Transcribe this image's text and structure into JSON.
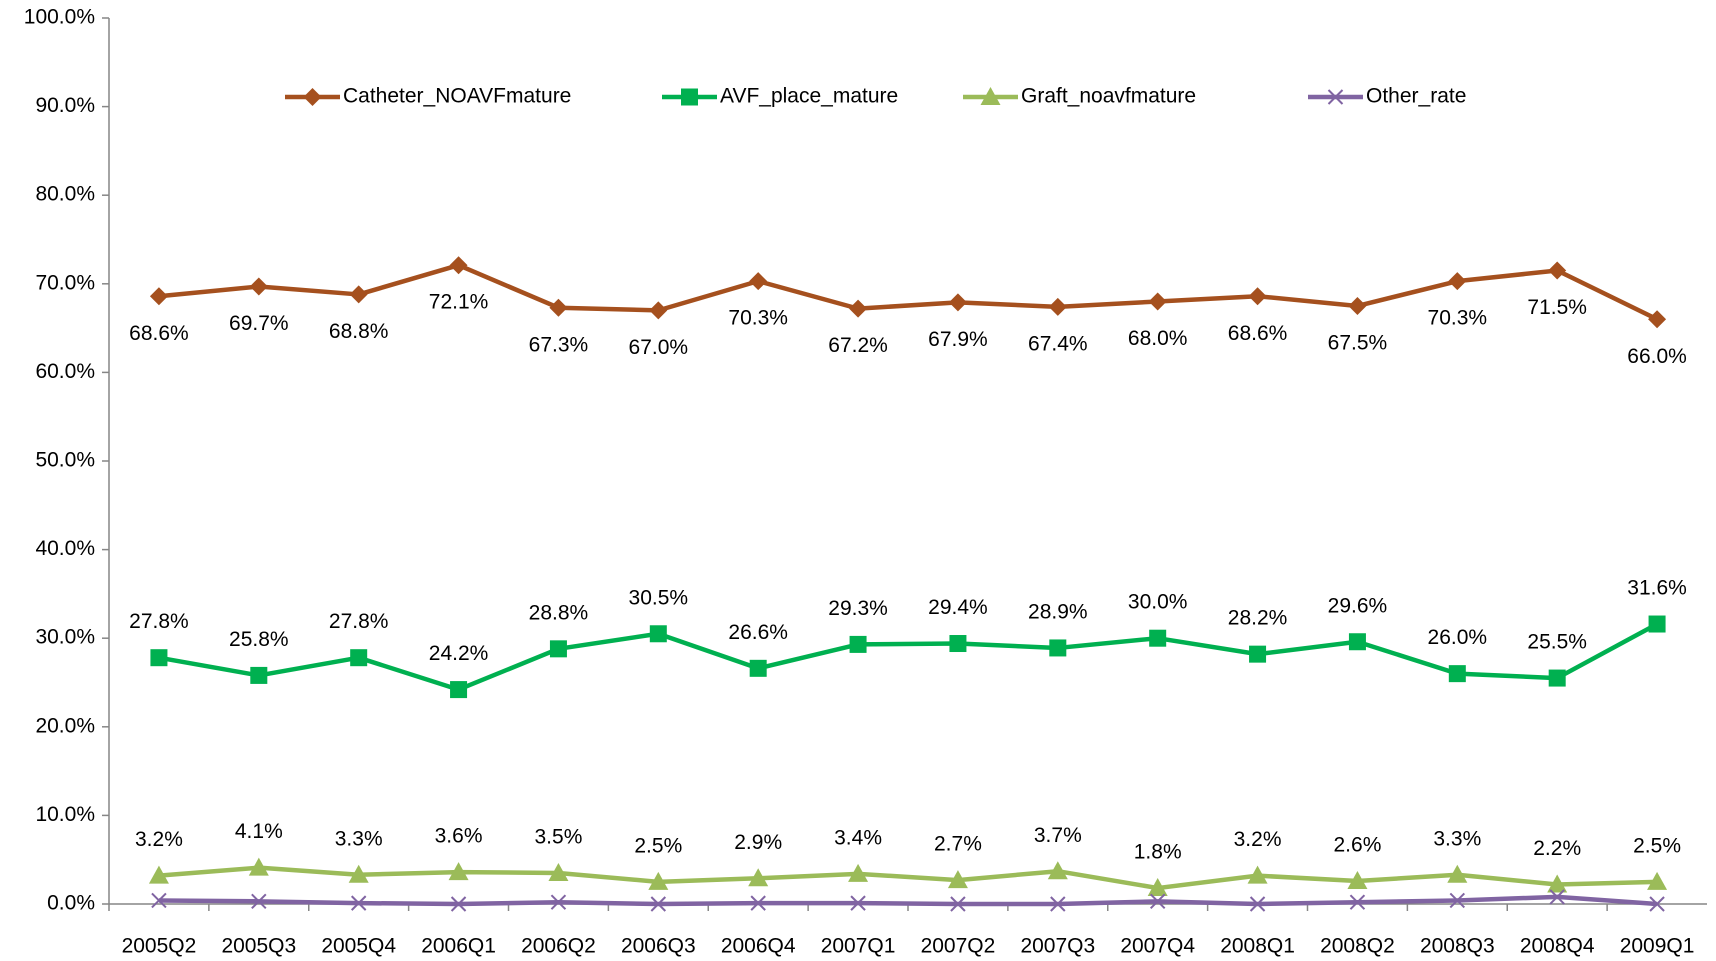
{
  "chart_data": {
    "type": "line",
    "categories": [
      "2005Q2",
      "2005Q3",
      "2005Q4",
      "2006Q1",
      "2006Q2",
      "2006Q3",
      "2006Q4",
      "2007Q1",
      "2007Q2",
      "2007Q3",
      "2007Q4",
      "2008Q1",
      "2008Q2",
      "2008Q3",
      "2008Q4",
      "2009Q1"
    ],
    "series": [
      {
        "name": "Catheter_NOAVFmature",
        "color": "#a5501e",
        "marker": "diamond",
        "label_position": "below",
        "values": [
          68.6,
          69.7,
          68.8,
          72.1,
          67.3,
          67.0,
          70.3,
          67.2,
          67.9,
          67.4,
          68.0,
          68.6,
          67.5,
          70.3,
          71.5,
          66.0
        ],
        "value_labels": [
          "68.6%",
          "69.7%",
          "68.8%",
          "72.1%",
          "67.3%",
          "67.0%",
          "70.3%",
          "67.2%",
          "67.9%",
          "67.4%",
          "68.0%",
          "68.6%",
          "67.5%",
          "70.3%",
          "71.5%",
          "66.0%"
        ]
      },
      {
        "name": "AVF_place_mature",
        "color": "#00b050",
        "marker": "square",
        "label_position": "above",
        "values": [
          27.8,
          25.8,
          27.8,
          24.2,
          28.8,
          30.5,
          26.6,
          29.3,
          29.4,
          28.9,
          30.0,
          28.2,
          29.6,
          26.0,
          25.5,
          31.6
        ],
        "value_labels": [
          "27.8%",
          "25.8%",
          "27.8%",
          "24.2%",
          "28.8%",
          "30.5%",
          "26.6%",
          "29.3%",
          "29.4%",
          "28.9%",
          "30.0%",
          "28.2%",
          "29.6%",
          "26.0%",
          "25.5%",
          "31.6%"
        ]
      },
      {
        "name": "Graft_noavfmature",
        "color": "#9bbb59",
        "marker": "triangle",
        "label_position": "above",
        "values": [
          3.2,
          4.1,
          3.3,
          3.6,
          3.5,
          2.5,
          2.9,
          3.4,
          2.7,
          3.7,
          1.8,
          3.2,
          2.6,
          3.3,
          2.2,
          2.5
        ],
        "value_labels": [
          "3.2%",
          "4.1%",
          "3.3%",
          "3.6%",
          "3.5%",
          "2.5%",
          "2.9%",
          "3.4%",
          "2.7%",
          "3.7%",
          "1.8%",
          "3.2%",
          "2.6%",
          "3.3%",
          "2.2%",
          "2.5%"
        ]
      },
      {
        "name": "Other_rate",
        "color": "#8064a2",
        "marker": "x",
        "values": [
          0.4,
          0.3,
          0.1,
          0.0,
          0.2,
          0.0,
          0.1,
          0.1,
          0.0,
          0.0,
          0.3,
          0.0,
          0.2,
          0.4,
          0.8,
          0.0
        ]
      }
    ],
    "ylim": [
      0,
      100
    ],
    "yticks": [
      {
        "value": 0,
        "label": "0.0%"
      },
      {
        "value": 10,
        "label": "10.0%"
      },
      {
        "value": 20,
        "label": "20.0%"
      },
      {
        "value": 30,
        "label": "30.0%"
      },
      {
        "value": 40,
        "label": "40.0%"
      },
      {
        "value": 50,
        "label": "50.0%"
      },
      {
        "value": 60,
        "label": "60.0%"
      },
      {
        "value": 70,
        "label": "70.0%"
      },
      {
        "value": 80,
        "label": "80.0%"
      },
      {
        "value": 90,
        "label": "90.0%"
      },
      {
        "value": 100,
        "label": "100.0%"
      }
    ],
    "legend": "top"
  }
}
